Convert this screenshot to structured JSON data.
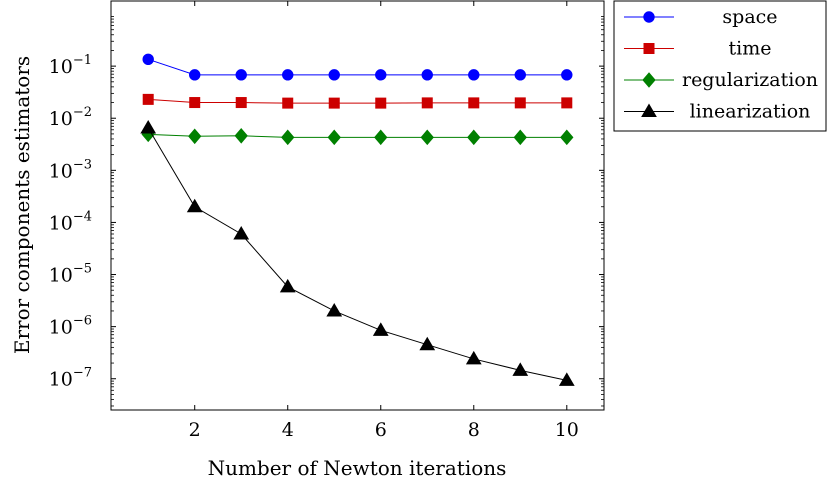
{
  "chart_data": {
    "type": "line",
    "xlabel": "Number of Newton iterations",
    "ylabel": "Error components estimators",
    "yscale": "log",
    "xlim": [
      0.2,
      10.8
    ],
    "ylim_log10": [
      -7.6,
      0.25
    ],
    "xticks": [
      2,
      4,
      6,
      8,
      10
    ],
    "yticks_exponents": [
      -7,
      -6,
      -5,
      -4,
      -3,
      -2,
      -1
    ],
    "ytick_base": "10",
    "grid": false,
    "legend_position": "outside-right-top",
    "x": [
      1,
      2,
      3,
      4,
      5,
      6,
      7,
      8,
      9,
      10
    ],
    "series": [
      {
        "name": "space",
        "color": "#0000ff",
        "marker": "circle",
        "values": [
          0.135,
          0.068,
          0.068,
          0.068,
          0.068,
          0.068,
          0.068,
          0.068,
          0.068,
          0.068
        ]
      },
      {
        "name": "time",
        "color": "#cc0000",
        "marker": "square",
        "values": [
          0.023,
          0.02,
          0.02,
          0.0195,
          0.0195,
          0.0195,
          0.0197,
          0.0197,
          0.0197,
          0.0197
        ]
      },
      {
        "name": "regularization",
        "color": "#008000",
        "marker": "diamond",
        "values": [
          0.0049,
          0.0045,
          0.0046,
          0.0043,
          0.0043,
          0.0043,
          0.0043,
          0.0043,
          0.0043,
          0.0043
        ]
      },
      {
        "name": "linearization",
        "color": "#000000",
        "marker": "triangle",
        "values": [
          0.0065,
          0.0002,
          6e-05,
          5.8e-06,
          2e-06,
          8.5e-07,
          4.5e-07,
          2.4e-07,
          1.45e-07,
          9.3e-08
        ]
      }
    ]
  }
}
